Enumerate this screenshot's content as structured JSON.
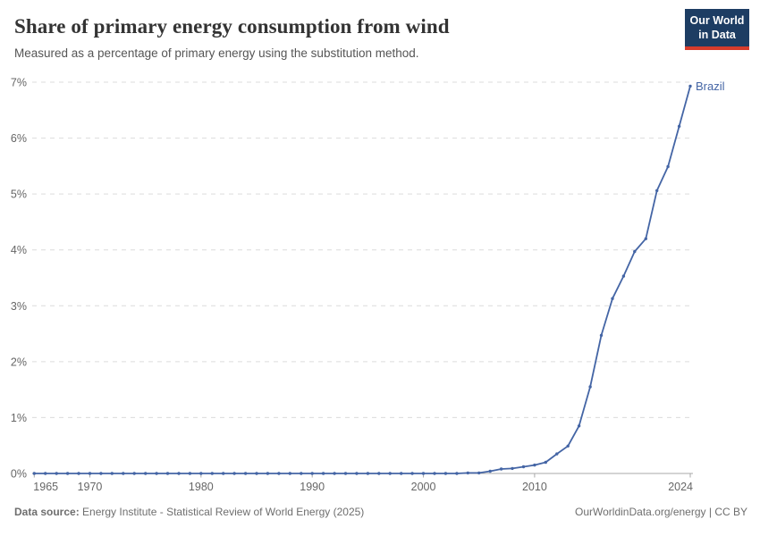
{
  "header": {
    "title": "Share of primary energy consumption from wind",
    "subtitle": "Measured as a percentage of primary energy using the substitution method.",
    "logo": {
      "line1": "Our World",
      "line2": "in Data",
      "bg_color": "#1d3d63",
      "accent_color": "#d73c2c"
    }
  },
  "footer": {
    "source_label": "Data source:",
    "source_text": " Energy Institute - Statistical Review of World Energy (2025)",
    "link_text": "OurWorldinData.org/energy | CC BY"
  },
  "chart_data": {
    "type": "line",
    "title": "Share of primary energy consumption from wind",
    "subtitle": "Measured as a percentage of primary energy using the substitution method.",
    "entity": "Brazil",
    "unit": "%",
    "xlabel": "",
    "ylabel": "",
    "xlim": [
      1965,
      2024
    ],
    "ylim": [
      0,
      7
    ],
    "y_ticks": [
      0,
      1,
      2,
      3,
      4,
      5,
      6,
      7
    ],
    "y_tick_suffix": "%",
    "x_ticks": [
      1965,
      1970,
      1980,
      1990,
      2000,
      2010,
      2024
    ],
    "grid": "horizontal-dashed",
    "legend": "end-of-line-label",
    "x": [
      1965,
      1966,
      1967,
      1968,
      1969,
      1970,
      1971,
      1972,
      1973,
      1974,
      1975,
      1976,
      1977,
      1978,
      1979,
      1980,
      1981,
      1982,
      1983,
      1984,
      1985,
      1986,
      1987,
      1988,
      1989,
      1990,
      1991,
      1992,
      1993,
      1994,
      1995,
      1996,
      1997,
      1998,
      1999,
      2000,
      2001,
      2002,
      2003,
      2004,
      2005,
      2006,
      2007,
      2008,
      2009,
      2010,
      2011,
      2012,
      2013,
      2014,
      2015,
      2016,
      2017,
      2018,
      2019,
      2020,
      2021,
      2022,
      2023,
      2024
    ],
    "series": [
      {
        "name": "Brazil",
        "color": "#4465a5",
        "values": [
          0,
          0,
          0,
          0,
          0,
          0,
          0,
          0,
          0,
          0,
          0,
          0,
          0,
          0,
          0,
          0,
          0,
          0,
          0,
          0,
          0,
          0,
          0,
          0,
          0,
          0,
          0,
          0,
          0,
          0,
          0,
          0,
          0,
          0,
          0,
          0,
          0,
          0,
          0,
          0.01,
          0.01,
          0.04,
          0.08,
          0.09,
          0.12,
          0.15,
          0.2,
          0.35,
          0.49,
          0.85,
          1.55,
          2.47,
          3.13,
          3.53,
          3.97,
          4.2,
          5.06,
          5.49,
          6.21,
          6.93
        ]
      }
    ],
    "colors": {
      "line": "#4465a5",
      "grid": "#dcdcdc",
      "axis": "#a8a8a8",
      "tick_text": "#666666",
      "end_label": "#4465a5"
    }
  }
}
